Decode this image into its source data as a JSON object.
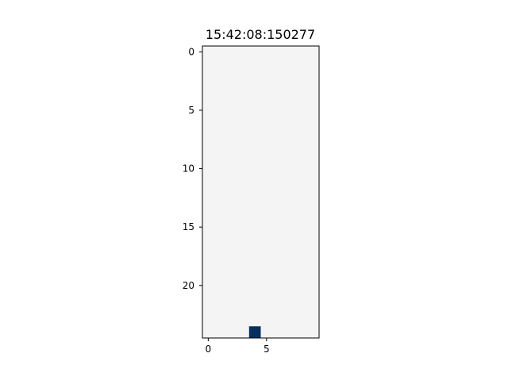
{
  "title": "15:42:08:150277",
  "chart_data": {
    "type": "heatmap",
    "title": "15:42:08:150277",
    "rows": 25,
    "cols": 10,
    "xlim": [
      -0.5,
      9.5
    ],
    "ylim": [
      24.5,
      -0.5
    ],
    "xticks": [
      0,
      5
    ],
    "yticks": [
      0,
      5,
      10,
      15,
      20
    ],
    "background_value": 0,
    "background_color": "#f4f4f4",
    "cells": [
      {
        "row": 24,
        "col": 4,
        "color": "#05305e"
      }
    ],
    "grid": false
  }
}
